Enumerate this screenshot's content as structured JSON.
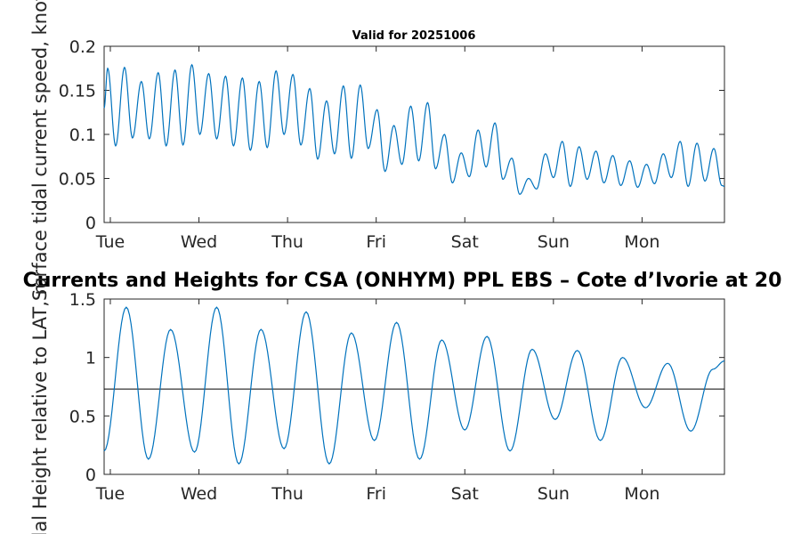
{
  "chart_data": [
    {
      "type": "line",
      "title": "Valid for 20251006",
      "ylabel": "Surface tidal current speed, knots",
      "xlabel": "",
      "x_tick_labels": [
        "Tue",
        "Wed",
        "Thu",
        "Fri",
        "Sat",
        "Sun",
        "Mon"
      ],
      "y_tick_labels": [
        "0",
        "0.05",
        "0.1",
        "0.15",
        "0.2"
      ],
      "ylim": [
        0,
        0.2
      ],
      "xlim_days": [
        0,
        7.0
      ],
      "series": [
        {
          "name": "Surface tidal current speed",
          "color": "#0072BD",
          "x_days": [
            0.0,
            0.04,
            0.13,
            0.23,
            0.32,
            0.42,
            0.51,
            0.61,
            0.7,
            0.8,
            0.89,
            0.99,
            1.08,
            1.18,
            1.27,
            1.37,
            1.46,
            1.56,
            1.65,
            1.75,
            1.84,
            1.94,
            2.03,
            2.13,
            2.22,
            2.32,
            2.41,
            2.51,
            2.6,
            2.7,
            2.79,
            2.89,
            2.98,
            3.08,
            3.17,
            3.27,
            3.36,
            3.46,
            3.55,
            3.65,
            3.74,
            3.84,
            3.93,
            4.03,
            4.12,
            4.22,
            4.31,
            4.41,
            4.5,
            4.6,
            4.69,
            4.79,
            4.88,
            4.98,
            5.07,
            5.17,
            5.26,
            5.36,
            5.45,
            5.55,
            5.64,
            5.74,
            5.83,
            5.93,
            6.02,
            6.12,
            6.21,
            6.31,
            6.4,
            6.5,
            6.59,
            6.69,
            6.78,
            6.88,
            6.97,
            7.0
          ],
          "speed_knots": [
            0.13,
            0.175,
            0.087,
            0.176,
            0.096,
            0.16,
            0.095,
            0.17,
            0.087,
            0.173,
            0.088,
            0.179,
            0.1,
            0.169,
            0.095,
            0.166,
            0.087,
            0.164,
            0.082,
            0.16,
            0.085,
            0.172,
            0.1,
            0.168,
            0.088,
            0.152,
            0.072,
            0.138,
            0.078,
            0.155,
            0.073,
            0.156,
            0.084,
            0.128,
            0.058,
            0.11,
            0.066,
            0.132,
            0.07,
            0.136,
            0.061,
            0.1,
            0.045,
            0.079,
            0.052,
            0.105,
            0.063,
            0.113,
            0.049,
            0.073,
            0.032,
            0.05,
            0.038,
            0.078,
            0.051,
            0.092,
            0.041,
            0.086,
            0.049,
            0.081,
            0.045,
            0.076,
            0.042,
            0.07,
            0.04,
            0.066,
            0.044,
            0.078,
            0.051,
            0.092,
            0.041,
            0.09,
            0.047,
            0.084,
            0.042,
            0.041
          ]
        }
      ]
    },
    {
      "type": "line",
      "title": "Currents and Heights for CSA (ONHYM) PPL EBS  – Cote d’Ivorie at 20",
      "ylabel": "Tidal Height relative to LAT, m",
      "xlabel": "",
      "x_tick_labels": [
        "Tue",
        "Wed",
        "Thu",
        "Fri",
        "Sat",
        "Sun",
        "Mon"
      ],
      "y_tick_labels": [
        "0",
        "0.5",
        "1",
        "1.5"
      ],
      "ylim": [
        0,
        1.5
      ],
      "xlim_days": [
        0,
        7.0
      ],
      "reference_line_m": 0.73,
      "series": [
        {
          "name": "Tidal height",
          "color": "#0072BD",
          "x_days": [
            0.0,
            0.25,
            0.5,
            0.75,
            1.02,
            1.27,
            1.52,
            1.77,
            2.03,
            2.28,
            2.54,
            2.79,
            3.05,
            3.3,
            3.56,
            3.81,
            4.07,
            4.32,
            4.58,
            4.83,
            5.09,
            5.34,
            5.6,
            5.85,
            6.11,
            6.36,
            6.62,
            6.87,
            7.0
          ],
          "height_m": [
            0.2,
            1.43,
            0.13,
            1.24,
            0.19,
            1.43,
            0.09,
            1.24,
            0.22,
            1.39,
            0.09,
            1.21,
            0.29,
            1.3,
            0.13,
            1.15,
            0.38,
            1.18,
            0.2,
            1.07,
            0.47,
            1.06,
            0.29,
            1.0,
            0.57,
            0.95,
            0.37,
            0.9,
            0.97
          ]
        }
      ]
    }
  ]
}
